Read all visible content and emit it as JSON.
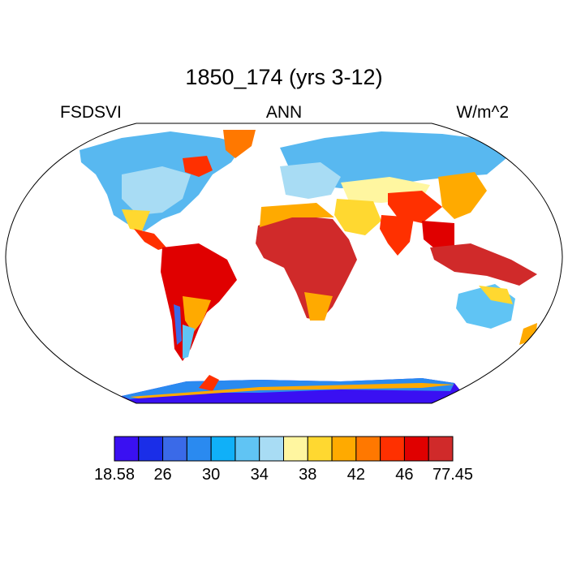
{
  "title": "1850_174 (yrs 3-12)",
  "variable": "FSDSVI",
  "season": "ANN",
  "units": "W/m^2",
  "colorbar": {
    "colors": [
      "#3a10f2",
      "#1a2ee8",
      "#3a6ae8",
      "#2a8af0",
      "#10b0f8",
      "#60c4f4",
      "#a8dcf4",
      "#fff6a0",
      "#ffd830",
      "#ffaa00",
      "#ff7800",
      "#ff3000",
      "#e00000",
      "#d02a2a"
    ],
    "labels": [
      {
        "text": "18.58",
        "boundary": 0
      },
      {
        "text": "26",
        "boundary": 2
      },
      {
        "text": "30",
        "boundary": 4
      },
      {
        "text": "34",
        "boundary": 6
      },
      {
        "text": "38",
        "boundary": 8
      },
      {
        "text": "42",
        "boundary": 10
      },
      {
        "text": "46",
        "boundary": 12
      },
      {
        "text": "77.45",
        "boundary": 14
      }
    ]
  }
}
